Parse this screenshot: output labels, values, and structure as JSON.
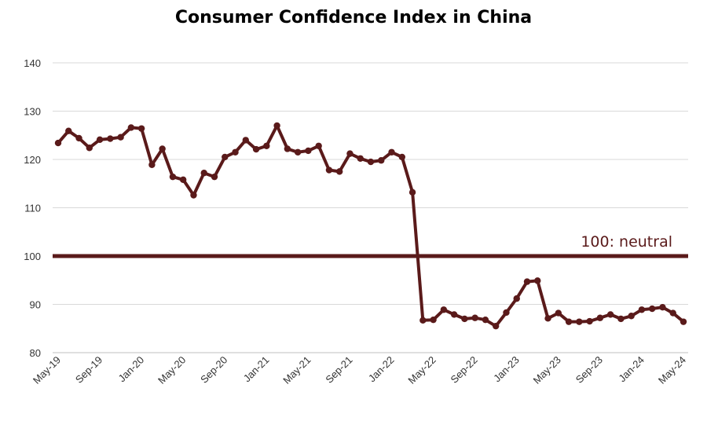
{
  "chart_data": {
    "type": "line",
    "title": "Consumer Confidence Index in China",
    "xlabel": "",
    "ylabel": "",
    "ylim": [
      80,
      140
    ],
    "yticks": [
      80,
      90,
      100,
      110,
      120,
      130,
      140
    ],
    "grid": true,
    "colors": {
      "series": "#5a1a1a",
      "reference": "#5a1a1a",
      "grid": "#d9d9d9"
    },
    "x_tick_labels": [
      "May-19",
      "Sep-19",
      "Jan-20",
      "May-20",
      "Sep-20",
      "Jan-21",
      "May-21",
      "Sep-21",
      "Jan-22",
      "May-22",
      "Sep-22",
      "Jan-23",
      "May-23",
      "Sep-23",
      "Jan-24",
      "May-24"
    ],
    "reference_line": {
      "value": 100,
      "label": "100: neutral"
    },
    "series": [
      {
        "x": [
          "May-19",
          "Jun-19",
          "Jul-19",
          "Aug-19",
          "Sep-19",
          "Oct-19",
          "Nov-19",
          "Dec-19",
          "Jan-20",
          "Feb-20",
          "Mar-20",
          "Apr-20",
          "May-20",
          "Jun-20",
          "Jul-20",
          "Aug-20",
          "Sep-20",
          "Oct-20",
          "Nov-20",
          "Dec-20",
          "Jan-21",
          "Feb-21",
          "Mar-21",
          "Apr-21",
          "May-21",
          "Jun-21",
          "Jul-21",
          "Aug-21",
          "Sep-21",
          "Oct-21",
          "Nov-21",
          "Dec-21",
          "Jan-22",
          "Feb-22",
          "Mar-22",
          "Apr-22",
          "May-22",
          "Jun-22",
          "Jul-22",
          "Aug-22",
          "Sep-22",
          "Oct-22",
          "Nov-22",
          "Dec-22",
          "Jan-23",
          "Feb-23",
          "Mar-23",
          "Apr-23",
          "May-23",
          "Jun-23",
          "Jul-23",
          "Aug-23",
          "Sep-23",
          "Oct-23",
          "Nov-23",
          "Dec-23",
          "Jan-24",
          "Feb-24",
          "Mar-24",
          "Apr-24",
          "May-24"
        ],
        "values": [
          123.4,
          125.9,
          124.4,
          122.4,
          124.1,
          124.3,
          124.6,
          126.6,
          126.4,
          118.9,
          122.2,
          116.4,
          115.8,
          112.6,
          117.2,
          116.4,
          120.5,
          121.5,
          124.0,
          122.1,
          122.8,
          127.0,
          122.2,
          121.5,
          121.8,
          122.8,
          117.8,
          117.5,
          121.2,
          120.2,
          119.5,
          119.8,
          121.5,
          120.5,
          113.2,
          86.7,
          86.8,
          88.9,
          87.9,
          87.0,
          87.2,
          86.8,
          85.5,
          88.3,
          91.2,
          94.7,
          94.9,
          87.1,
          88.2,
          86.4,
          86.4,
          86.5,
          87.2,
          87.9,
          87.0,
          87.6,
          88.9,
          89.1,
          89.4,
          88.2,
          86.4
        ]
      }
    ]
  }
}
